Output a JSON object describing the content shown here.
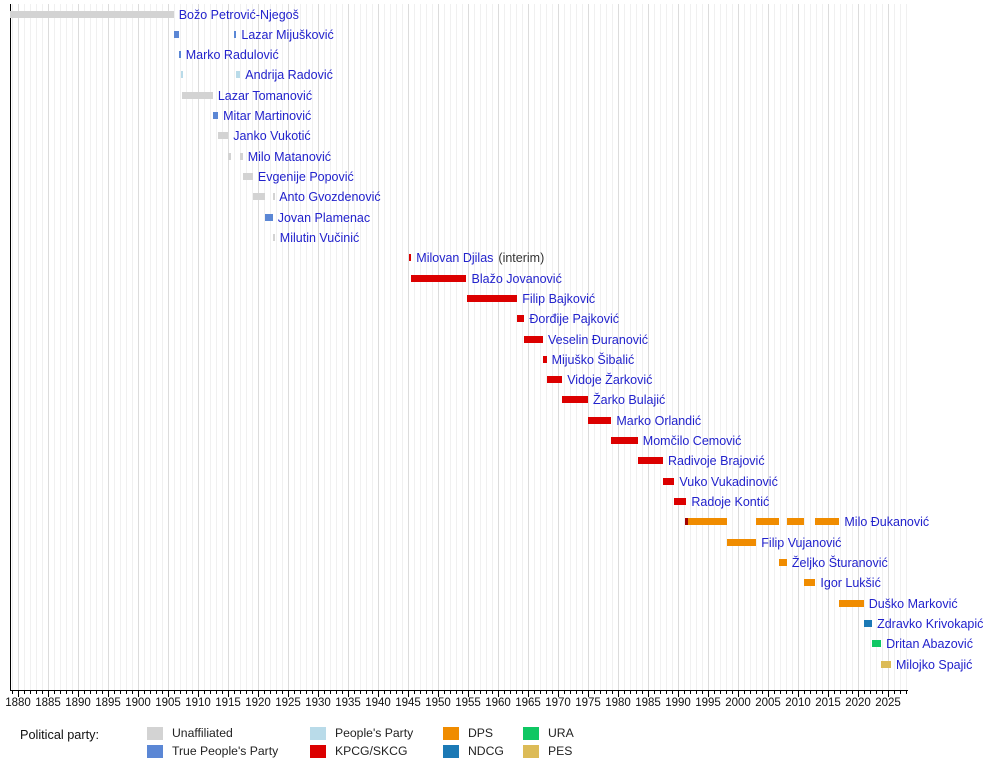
{
  "axis": {
    "start_year": 1880,
    "end_year": 2025,
    "step": 5,
    "labels": [
      "1880",
      "1885",
      "1890",
      "1895",
      "1900",
      "1905",
      "1910",
      "1915",
      "1920",
      "1925",
      "1930",
      "1935",
      "1940",
      "1945",
      "1950",
      "1955",
      "1960",
      "1965",
      "1970",
      "1975",
      "1980",
      "1985",
      "1990",
      "1995",
      "2000",
      "2005",
      "2010",
      "2015",
      "2020",
      "2025"
    ]
  },
  "legend": {
    "title": "Political party:",
    "items": [
      {
        "party": "unaffiliated",
        "label": "Unaffiliated"
      },
      {
        "party": "true_peoples",
        "label": "True People's Party"
      },
      {
        "party": "peoples",
        "label": "People's Party"
      },
      {
        "party": "kpcg",
        "label": "KPCG/SKCG"
      },
      {
        "party": "dps",
        "label": "DPS"
      },
      {
        "party": "ndcg",
        "label": "NDCG"
      },
      {
        "party": "ura",
        "label": "URA"
      },
      {
        "party": "pes",
        "label": "PES"
      }
    ]
  },
  "chart_data": {
    "type": "timeline",
    "xlabel": "",
    "ylabel": "",
    "xlim": [
      1878.7,
      2028.3
    ],
    "grid": "vertical-yearly",
    "legend_position": "bottom",
    "parties": {
      "unaffiliated": {
        "label": "Unaffiliated",
        "color": "#d3d3d3"
      },
      "true_peoples": {
        "label": "True People's Party",
        "color": "#5b87d5"
      },
      "peoples": {
        "label": "People's Party",
        "color": "#b9dbe9"
      },
      "kpcg": {
        "label": "KPCG/SKCG",
        "color": "#dc0000"
      },
      "skcg_dark": {
        "label": "SKCG",
        "color": "#a30000"
      },
      "dps": {
        "label": "DPS",
        "color": "#f08c00"
      },
      "ndcg": {
        "label": "NDCG",
        "color": "#1b79b5"
      },
      "ura": {
        "label": "URA",
        "color": "#0fc763"
      },
      "pes": {
        "label": "PES",
        "color": "#dcbb57"
      }
    },
    "people": [
      {
        "name": "Božo Petrović-Njegoš",
        "party": "unaffiliated",
        "terms": [
          {
            "s": 1878.7,
            "e": 1905.95
          }
        ]
      },
      {
        "name": "Lazar Mijušković",
        "party": "true_peoples",
        "terms": [
          {
            "s": 1905.95,
            "e": 1906.9
          },
          {
            "s": 1916.0,
            "e": 1916.4
          }
        ]
      },
      {
        "name": "Marko Radulović",
        "party": "true_peoples",
        "terms": [
          {
            "s": 1906.9,
            "e": 1907.12
          }
        ]
      },
      {
        "name": "Andrija Radović",
        "party": "peoples",
        "terms": [
          {
            "s": 1907.12,
            "e": 1907.32
          },
          {
            "s": 1916.4,
            "e": 1917.05
          }
        ]
      },
      {
        "name": "Lazar Tomanović",
        "party": "unaffiliated",
        "terms": [
          {
            "s": 1907.32,
            "e": 1912.47
          }
        ]
      },
      {
        "name": "Mitar Martinović",
        "party": "true_peoples",
        "terms": [
          {
            "s": 1912.47,
            "e": 1913.35
          }
        ]
      },
      {
        "name": "Janko Vukotić",
        "party": "unaffiliated",
        "terms": [
          {
            "s": 1913.35,
            "e": 1915.05
          }
        ]
      },
      {
        "name": "Milo Matanović",
        "party": "unaffiliated",
        "terms": [
          {
            "s": 1915.05,
            "e": 1915.5
          },
          {
            "s": 1917.05,
            "e": 1917.45
          }
        ]
      },
      {
        "name": "Evgenije Popović",
        "party": "unaffiliated",
        "terms": [
          {
            "s": 1917.45,
            "e": 1919.15
          }
        ]
      },
      {
        "name": "Anto Gvozdenović",
        "party": "unaffiliated",
        "terms": [
          {
            "s": 1919.15,
            "e": 1921.1
          },
          {
            "s": 1922.45,
            "e": 1922.7
          }
        ]
      },
      {
        "name": "Jovan Plamenac",
        "party": "true_peoples",
        "terms": [
          {
            "s": 1921.1,
            "e": 1922.45
          }
        ]
      },
      {
        "name": "Milutin Vučinić",
        "party": "unaffiliated",
        "terms": [
          {
            "s": 1922.5,
            "e": 1922.8
          }
        ]
      },
      {
        "name": "Milovan Djilas",
        "suffix": "(interim)",
        "party": "kpcg",
        "terms": [
          {
            "s": 1945.1,
            "e": 1945.55
          }
        ]
      },
      {
        "name": "Blažo Jovanović",
        "party": "kpcg",
        "terms": [
          {
            "s": 1945.55,
            "e": 1954.75
          }
        ]
      },
      {
        "name": "Filip Bajković",
        "party": "kpcg",
        "terms": [
          {
            "s": 1954.75,
            "e": 1963.2
          }
        ]
      },
      {
        "name": "Đorđije Pajković",
        "party": "kpcg",
        "terms": [
          {
            "s": 1963.2,
            "e": 1964.4
          }
        ]
      },
      {
        "name": "Veselin Đuranović",
        "party": "kpcg",
        "terms": [
          {
            "s": 1964.4,
            "e": 1967.5
          }
        ]
      },
      {
        "name": "Mijuško Šibalić",
        "party": "kpcg",
        "terms": [
          {
            "s": 1967.5,
            "e": 1968.1
          }
        ]
      },
      {
        "name": "Vidoje Žarković",
        "party": "kpcg",
        "terms": [
          {
            "s": 1968.1,
            "e": 1970.7
          }
        ]
      },
      {
        "name": "Žarko Bulajić",
        "party": "kpcg",
        "terms": [
          {
            "s": 1970.7,
            "e": 1975.0
          }
        ]
      },
      {
        "name": "Marko Orlandić",
        "party": "kpcg",
        "terms": [
          {
            "s": 1975.0,
            "e": 1978.9
          }
        ]
      },
      {
        "name": "Momčilo Cemović",
        "party": "kpcg",
        "terms": [
          {
            "s": 1978.9,
            "e": 1983.3
          }
        ]
      },
      {
        "name": "Radivoje Brajović",
        "party": "kpcg",
        "terms": [
          {
            "s": 1983.3,
            "e": 1987.5
          }
        ]
      },
      {
        "name": "Vuko Vukadinović",
        "party": "kpcg",
        "terms": [
          {
            "s": 1987.5,
            "e": 1989.4
          }
        ]
      },
      {
        "name": "Radoje Kontić",
        "party": "kpcg",
        "terms": [
          {
            "s": 1989.4,
            "e": 1991.4
          }
        ]
      },
      {
        "name": "Milo Đukanović",
        "party": "dps",
        "terms": [
          {
            "s": 1991.15,
            "e": 1991.6,
            "p": "skcg_dark"
          },
          {
            "s": 1991.6,
            "e": 1998.15
          },
          {
            "s": 2003.05,
            "e": 2006.85
          },
          {
            "s": 2008.15,
            "e": 2010.95
          },
          {
            "s": 2012.9,
            "e": 2016.9
          }
        ]
      },
      {
        "name": "Filip Vujanović",
        "party": "dps",
        "terms": [
          {
            "s": 1998.15,
            "e": 2003.05
          }
        ]
      },
      {
        "name": "Željko Šturanović",
        "party": "dps",
        "terms": [
          {
            "s": 2006.85,
            "e": 2008.15
          }
        ]
      },
      {
        "name": "Igor Lukšić",
        "party": "dps",
        "terms": [
          {
            "s": 2010.95,
            "e": 2012.9
          }
        ]
      },
      {
        "name": "Duško Marković",
        "party": "dps",
        "terms": [
          {
            "s": 2016.9,
            "e": 2020.95
          }
        ]
      },
      {
        "name": "Zdravko Krivokapić",
        "party": "ndcg",
        "terms": [
          {
            "s": 2020.95,
            "e": 2022.35
          }
        ]
      },
      {
        "name": "Dritan Abazović",
        "party": "ura",
        "terms": [
          {
            "s": 2022.35,
            "e": 2023.85
          }
        ]
      },
      {
        "name": "Milojko Spajić",
        "party": "pes",
        "terms": [
          {
            "s": 2023.85,
            "e": 2025.5
          }
        ]
      }
    ]
  }
}
